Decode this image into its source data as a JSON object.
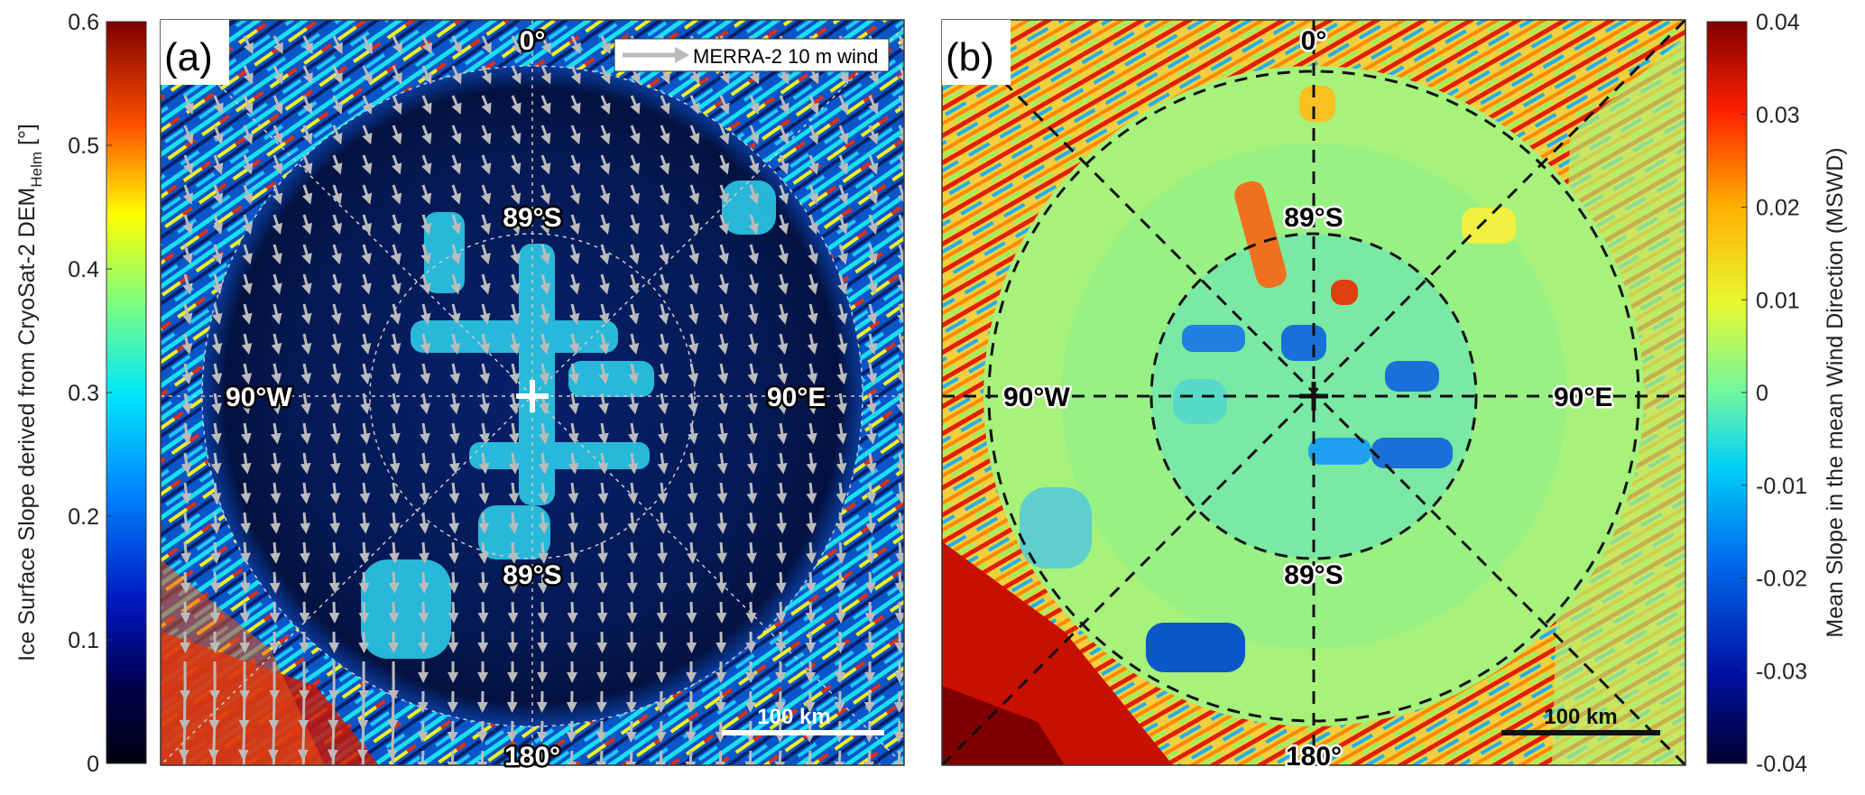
{
  "panel_a": {
    "label": "(a)",
    "colorbar": {
      "title_main": "Ice Surface Slope derived from CryoSat-2 DEM",
      "title_sub": "Helm",
      "title_unit": " [°]",
      "ticks": [
        "0",
        "0.1",
        "0.2",
        "0.3",
        "0.4",
        "0.5",
        "0.6"
      ],
      "range": [
        0,
        0.6
      ]
    },
    "legend_text": "MERRA-2 10 m wind",
    "lat_labels": [
      "89°S",
      "89°S"
    ],
    "lon_labels": {
      "top": "0°",
      "bottom": "180°",
      "left": "90°W",
      "right": "90°E"
    },
    "scale_label": "100 km"
  },
  "panel_b": {
    "label": "(b)",
    "colorbar": {
      "title": "Mean Slope in the mean Wind Direction (MSWD)",
      "ticks": [
        "0.04",
        "0.03",
        "0.02",
        "0.01",
        "0",
        "-0.01",
        "-0.02",
        "-0.03",
        "-0.04"
      ],
      "range": [
        -0.04,
        0.04
      ]
    },
    "lat_labels": [
      "89°S",
      "89°S"
    ],
    "lon_labels": {
      "top": "0°",
      "bottom": "180°",
      "left": "90°W",
      "right": "90°E"
    },
    "scale_label": "100 km"
  },
  "colors": {
    "jet_dark_red": "#7f0000",
    "jet_red": "#e00000",
    "jet_yellow": "#f0f000",
    "jet_cyan": "#00d8f0",
    "jet_blue": "#0050d0",
    "jet_dark_blue": "#000040",
    "mswd_base": "#9ef56a",
    "arrow": "#b8b8b8"
  }
}
